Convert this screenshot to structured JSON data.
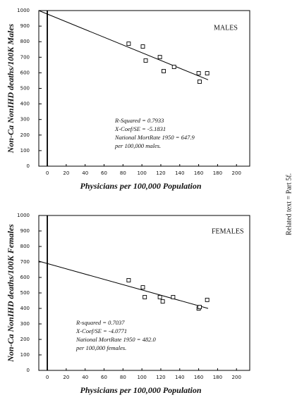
{
  "chart_data": [
    {
      "type": "scatter",
      "label": "MALES",
      "y_label": "Non-Ca NonIHD deaths/100K Males",
      "x_label": "Physicians per 100,000 Population",
      "x": [
        86,
        101,
        104,
        119,
        123,
        134,
        160,
        161,
        169
      ],
      "values": [
        787,
        769,
        679,
        701,
        611,
        638,
        597,
        543,
        597
      ],
      "color": "#000000",
      "fit_line": {
        "x": [
          -9,
          170
        ],
        "y": [
          1000,
          555
        ]
      },
      "zero_line": 0,
      "annotations": [
        "R-Squared = 0.7933",
        "X-Coef/SE = -5.1831",
        "National MortRate 1950 = 647.9",
        "per 100,000 males."
      ],
      "xlim": [
        -9,
        214
      ],
      "xticks": [
        0,
        20,
        40,
        60,
        80,
        100,
        120,
        140,
        160,
        180,
        200
      ],
      "ylim": [
        0,
        1000
      ],
      "yticks": [
        0,
        100,
        200,
        300,
        400,
        500,
        600,
        700,
        800,
        900,
        1000
      ]
    },
    {
      "type": "scatter",
      "label": "FEMALES",
      "y_label": "Non-Ca NonIHD deaths/100K Females",
      "x_label": "Physicians per 100,000 Population",
      "x": [
        86,
        101,
        103,
        119,
        122,
        133,
        160,
        161,
        169
      ],
      "values": [
        582,
        536,
        473,
        473,
        445,
        473,
        400,
        409,
        455
      ],
      "color": "#000000",
      "fit_line": {
        "x": [
          -9,
          170
        ],
        "y": [
          705,
          400
        ]
      },
      "zero_line": 0,
      "annotations": [
        "R-squared = 0.7037",
        "X-Coef/SE = -4.0771",
        "National MortRate 1950 = 482.0",
        "per 100,000 females."
      ],
      "xlim": [
        -9,
        214
      ],
      "xticks": [
        0,
        20,
        40,
        60,
        80,
        100,
        120,
        140,
        160,
        180,
        200
      ],
      "ylim": [
        0,
        1000
      ],
      "yticks": [
        0,
        100,
        200,
        300,
        400,
        500,
        600,
        700,
        800,
        900,
        1000
      ]
    }
  ],
  "side_note": "Related text = Part 5f."
}
